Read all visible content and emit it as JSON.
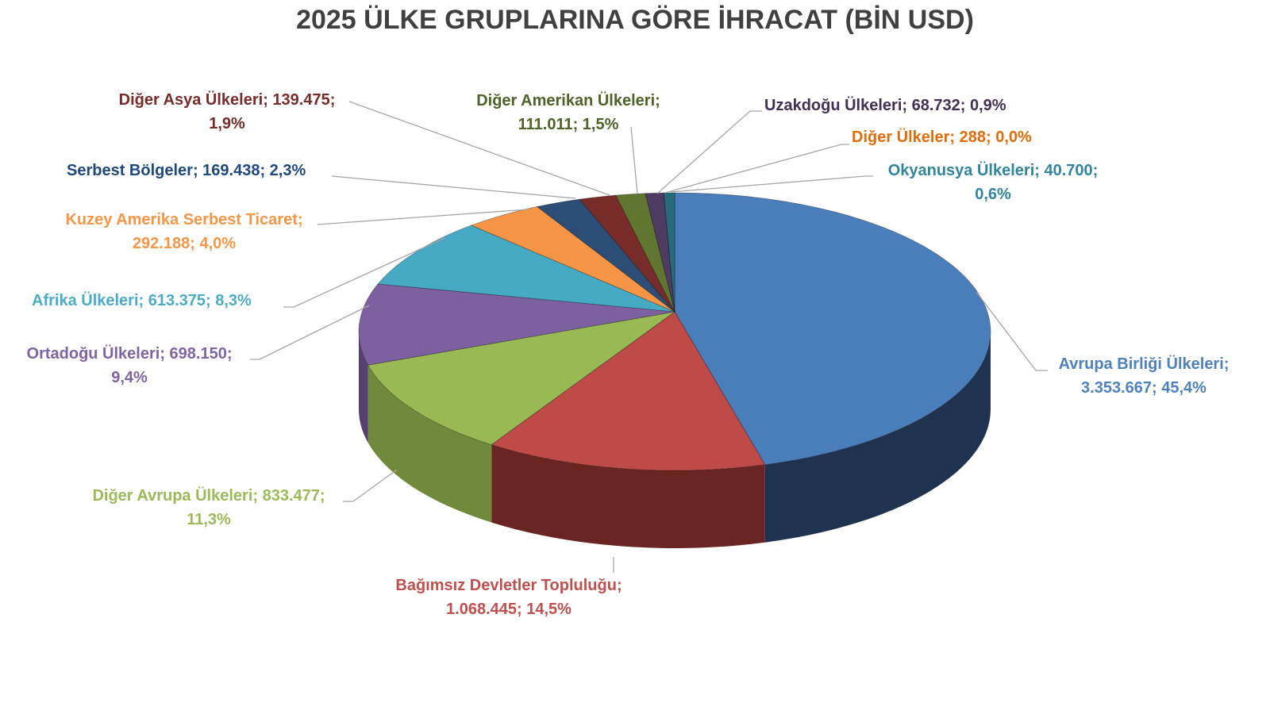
{
  "chart_data": {
    "type": "pie",
    "title": "2025 ÜLKE GRUPLARINA GÖRE İHRACAT (BİN USD)",
    "three_d": true,
    "start": "top, clockwise",
    "slices": [
      {
        "name": "Avrupa Birliği Ülkeleri",
        "value": 3353667,
        "percent": 45.4,
        "color": "#4a7ebb",
        "side": "#1f3350",
        "label_color": "#4f81bd",
        "lines": [
          "Avrupa Birliği Ülkeleri;",
          "3.353.667; 45,4%"
        ]
      },
      {
        "name": "Bağımsız Devletler Topluluğu",
        "value": 1068445,
        "percent": 14.5,
        "color": "#be4b48",
        "side": "#6a2422",
        "label_color": "#c0504d",
        "lines": [
          "Bağımsız Devletler Topluluğu;",
          "1.068.445; 14,5%"
        ]
      },
      {
        "name": "Diğer Avrupa Ülkeleri",
        "value": 833477,
        "percent": 11.3,
        "color": "#98b954",
        "side": "#6f8a3a",
        "label_color": "#9bbb59",
        "lines": [
          "Diğer Avrupa Ülkeleri; 833.477;",
          "11,3%"
        ]
      },
      {
        "name": "Ortadoğu Ülkeleri",
        "value": 698150,
        "percent": 9.4,
        "color": "#7d60a0",
        "side": "#55406f",
        "label_color": "#8064a2",
        "lines": [
          "Ortadoğu Ülkeleri; 698.150;",
          "9,4%"
        ]
      },
      {
        "name": "Afrika Ülkeleri",
        "value": 613375,
        "percent": 8.3,
        "color": "#46aac5",
        "side": "#2b7487",
        "label_color": "#4bacc6",
        "lines": [
          "Afrika Ülkeleri; 613.375; 8,3%"
        ]
      },
      {
        "name": "Kuzey Amerika Serbest Ticaret",
        "value": 292188,
        "percent": 4.0,
        "color": "#f69546",
        "side": "#a8601f",
        "label_color": "#f79646",
        "lines": [
          "Kuzey Amerika Serbest Ticaret;",
          "292.188; 4,0%"
        ]
      },
      {
        "name": "Serbest Bölgeler",
        "value": 169438,
        "percent": 2.3,
        "color": "#2c4d75",
        "side": "#1a2e47",
        "label_color": "#1f497d",
        "lines": [
          "Serbest Bölgeler; 169.438; 2,3%"
        ]
      },
      {
        "name": "Diğer Asya Ülkeleri",
        "value": 139475,
        "percent": 1.9,
        "color": "#772c2a",
        "side": "#4a1a19",
        "label_color": "#772c2a",
        "lines": [
          "Diğer Asya Ülkeleri; 139.475;",
          "1,9%"
        ]
      },
      {
        "name": "Diğer Amerikan Ülkeleri",
        "value": 111011,
        "percent": 1.5,
        "color": "#5f7530",
        "side": "#3d4c1e",
        "label_color": "#4f6228",
        "lines": [
          "Diğer Amerikan Ülkeleri;",
          "111.011; 1,5%"
        ]
      },
      {
        "name": "Uzakdoğu Ülkeleri",
        "value": 68732,
        "percent": 0.9,
        "color": "#4d3b62",
        "side": "#30253e",
        "label_color": "#403151",
        "lines": [
          "Uzakdoğu Ülkeleri; 68.732; 0,9%"
        ]
      },
      {
        "name": "Diğer Ülkeler",
        "value": 288,
        "percent": 0.0,
        "color": "#b65708",
        "side": "#7a3a05",
        "label_color": "#e46c0a",
        "lines": [
          "Diğer Ülkeler; 288; 0,0%"
        ]
      },
      {
        "name": "Okyanusya Ülkeleri",
        "value": 40700,
        "percent": 0.6,
        "color": "#276a7c",
        "side": "#18434f",
        "label_color": "#31859c",
        "lines": [
          "Okyanusya Ülkeleri; 40.700;",
          "0,6%"
        ]
      }
    ]
  }
}
